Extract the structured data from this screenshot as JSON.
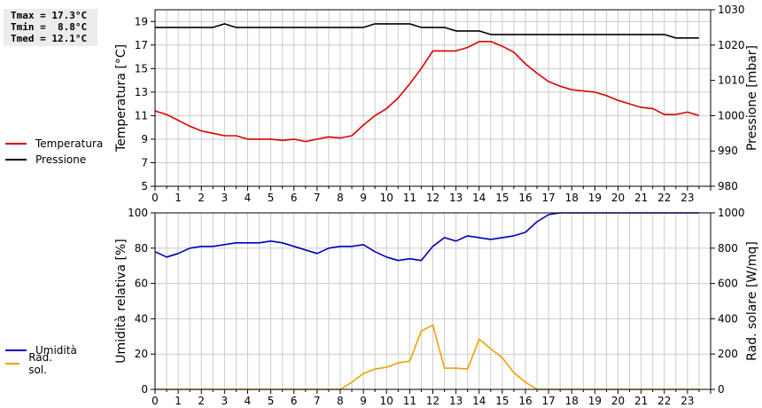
{
  "stats": {
    "tmax": "Tmax = 17.3°C",
    "tmin": "Tmin =  8.8°C",
    "tmed": "Tmed = 12.1°C"
  },
  "colors": {
    "temperatura": "#dd0000",
    "pressione": "#000000",
    "umidita": "#0000bb",
    "radsol": "#f0a000",
    "grid": "#cccccc"
  },
  "chart_data": [
    {
      "type": "line",
      "legend": [
        "Temperatura",
        "Pressione"
      ],
      "ylabel": "Temperatura [°C]",
      "ylabel_right": "Pressione [mbar]",
      "ylim": [
        5,
        20
      ],
      "ylim_right": [
        980,
        1030
      ],
      "xlim": [
        0,
        24
      ],
      "xticks": [
        "0",
        "1",
        "2",
        "3",
        "4",
        "5",
        "6",
        "7",
        "8",
        "9",
        "10",
        "11",
        "12",
        "13",
        "14",
        "15",
        "16",
        "17",
        "18",
        "19",
        "20",
        "21",
        "22",
        "23"
      ],
      "yticks": [
        "5",
        "7",
        "9",
        "11",
        "13",
        "15",
        "17",
        "19"
      ],
      "yticks_right": [
        "980",
        "990",
        "1000",
        "1010",
        "1020",
        "1030"
      ],
      "series": [
        {
          "name": "Temperatura",
          "axis": "left",
          "x": [
            0,
            0.5,
            1,
            1.5,
            2,
            2.5,
            3,
            3.5,
            4,
            4.5,
            5,
            5.5,
            6,
            6.5,
            7,
            7.5,
            8,
            8.5,
            9,
            9.5,
            10,
            10.5,
            11,
            11.5,
            12,
            12.5,
            13,
            13.5,
            14,
            14.5,
            15,
            15.5,
            16,
            16.5,
            17,
            17.5,
            18,
            18.5,
            19,
            19.5,
            20,
            20.5,
            21,
            21.5,
            22,
            22.5,
            23,
            23.5
          ],
          "y": [
            11.4,
            11.1,
            10.6,
            10.1,
            9.7,
            9.5,
            9.3,
            9.3,
            9.0,
            9.0,
            9.0,
            8.9,
            9.0,
            8.8,
            9.0,
            9.2,
            9.1,
            9.3,
            10.2,
            11.0,
            11.6,
            12.5,
            13.7,
            15.0,
            16.5,
            16.5,
            16.5,
            16.8,
            17.3,
            17.3,
            16.9,
            16.4,
            15.4,
            14.6,
            13.9,
            13.5,
            13.2,
            13.1,
            13.0,
            12.7,
            12.3,
            12.0,
            11.7,
            11.6,
            11.1,
            11.1,
            11.3,
            11.0
          ]
        },
        {
          "name": "Pressione",
          "axis": "right",
          "x": [
            0,
            0.5,
            1,
            1.5,
            2,
            2.5,
            3,
            3.5,
            4,
            4.5,
            5,
            5.5,
            6,
            6.5,
            7,
            7.5,
            8,
            8.5,
            9,
            9.5,
            10,
            10.5,
            11,
            11.5,
            12,
            12.5,
            13,
            13.5,
            14,
            14.5,
            15,
            15.5,
            16,
            16.5,
            17,
            17.5,
            18,
            18.5,
            19,
            19.5,
            20,
            20.5,
            21,
            21.5,
            22,
            22.5,
            23,
            23.5
          ],
          "y": [
            1025,
            1025,
            1025,
            1025,
            1025,
            1025,
            1026,
            1025,
            1025,
            1025,
            1025,
            1025,
            1025,
            1025,
            1025,
            1025,
            1025,
            1025,
            1025,
            1026,
            1026,
            1026,
            1026,
            1025,
            1025,
            1025,
            1024,
            1024,
            1024,
            1023,
            1023,
            1023,
            1023,
            1023,
            1023,
            1023,
            1023,
            1023,
            1023,
            1023,
            1023,
            1023,
            1023,
            1023,
            1023,
            1022,
            1022,
            1022
          ]
        }
      ]
    },
    {
      "type": "line",
      "legend": [
        "Umidità",
        "Rad. sol."
      ],
      "ylabel": "Umidità relativa [%]",
      "ylabel_right": "Rad. solare [W/mq]",
      "ylim": [
        0,
        100
      ],
      "ylim_right": [
        0,
        1000
      ],
      "xlim": [
        0,
        24
      ],
      "xticks": [
        "0",
        "1",
        "2",
        "3",
        "4",
        "5",
        "6",
        "7",
        "8",
        "9",
        "10",
        "11",
        "12",
        "13",
        "14",
        "15",
        "16",
        "17",
        "18",
        "19",
        "20",
        "21",
        "22",
        "23"
      ],
      "yticks": [
        "0",
        "20",
        "40",
        "60",
        "80",
        "100"
      ],
      "yticks_right": [
        "0",
        "200",
        "400",
        "600",
        "800",
        "1000"
      ],
      "series": [
        {
          "name": "Umidità",
          "axis": "left",
          "x": [
            0,
            0.5,
            1,
            1.5,
            2,
            2.5,
            3,
            3.5,
            4,
            4.5,
            5,
            5.5,
            6,
            6.5,
            7,
            7.5,
            8,
            8.5,
            9,
            9.5,
            10,
            10.5,
            11,
            11.5,
            12,
            12.5,
            13,
            13.5,
            14,
            14.5,
            15,
            15.5,
            16,
            16.5,
            17,
            17.5,
            18,
            18.5,
            19,
            19.5,
            20,
            20.5,
            21,
            21.5,
            22,
            22.5,
            23,
            23.5
          ],
          "y": [
            78,
            75,
            77,
            80,
            81,
            81,
            82,
            83,
            83,
            83,
            84,
            83,
            81,
            79,
            77,
            80,
            81,
            81,
            82,
            78,
            75,
            73,
            74,
            73,
            81,
            86,
            84,
            87,
            86,
            85,
            86,
            87,
            89,
            95,
            99,
            100,
            100,
            100,
            100,
            100,
            100,
            100,
            100,
            100,
            100,
            100,
            100,
            100
          ]
        },
        {
          "name": "Rad. sol.",
          "axis": "right",
          "x": [
            0,
            1,
            2,
            3,
            4,
            5,
            6,
            7,
            8,
            8.5,
            9,
            9.5,
            10,
            10.5,
            11,
            11.5,
            12,
            12.5,
            13,
            13.5,
            14,
            14.5,
            15,
            15.5,
            16,
            16.5,
            17,
            18,
            19,
            20,
            21,
            22,
            23,
            23.5
          ],
          "y": [
            0,
            0,
            0,
            0,
            0,
            0,
            0,
            0,
            0,
            40,
            90,
            115,
            125,
            150,
            160,
            330,
            365,
            120,
            120,
            115,
            285,
            230,
            180,
            95,
            40,
            0,
            0,
            0,
            0,
            0,
            0,
            0,
            0,
            0
          ]
        }
      ]
    }
  ]
}
